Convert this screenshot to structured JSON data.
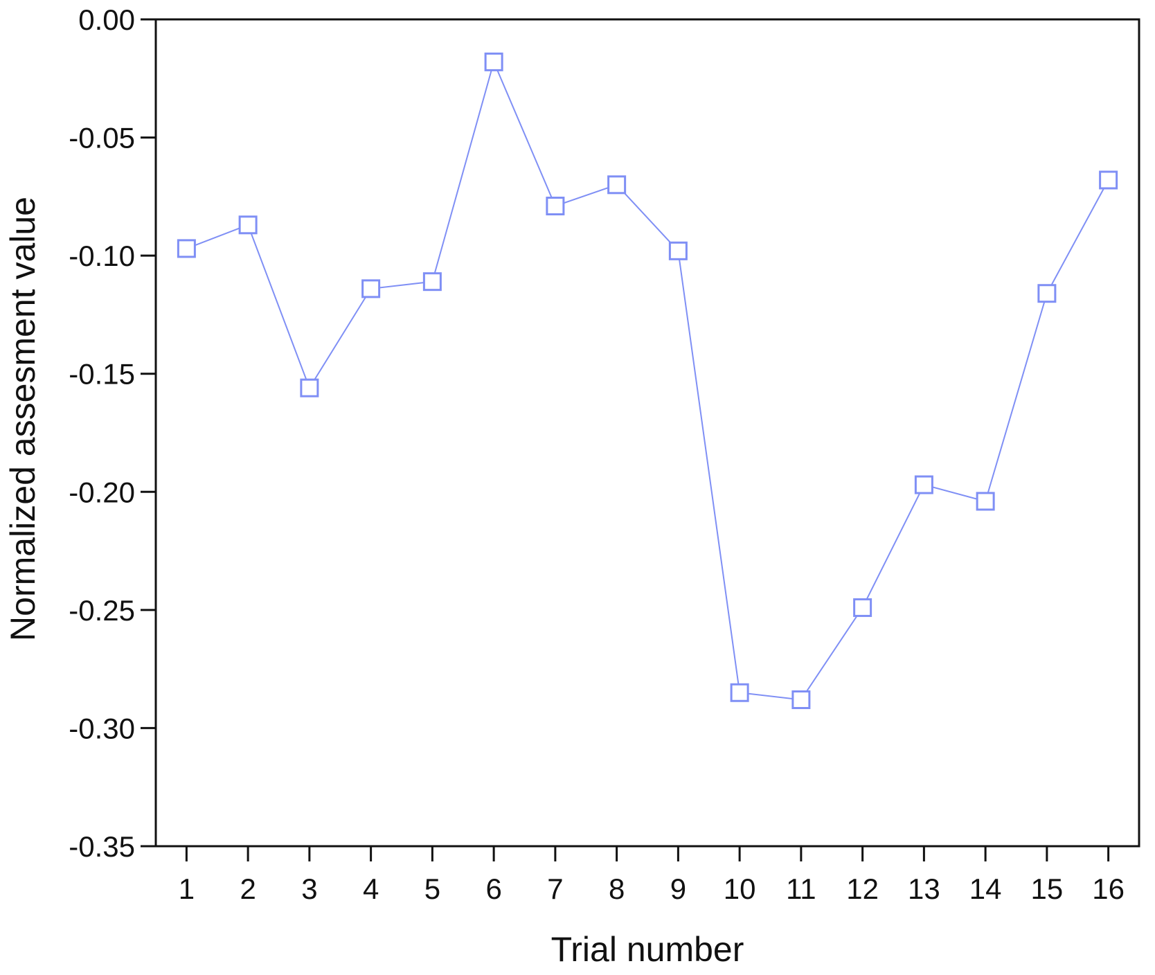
{
  "chart_data": {
    "type": "line",
    "title": "",
    "xlabel": "Trial number",
    "ylabel": "Normalized assesment value",
    "x": [
      1,
      2,
      3,
      4,
      5,
      6,
      7,
      8,
      9,
      10,
      11,
      12,
      13,
      14,
      15,
      16
    ],
    "x_tick_labels": [
      "1",
      "2",
      "3",
      "4",
      "5",
      "6",
      "7",
      "8",
      "9",
      "10",
      "11",
      "12",
      "13",
      "14",
      "15",
      "16"
    ],
    "y_ticks": [
      0.0,
      -0.05,
      -0.1,
      -0.15,
      -0.2,
      -0.25,
      -0.3,
      -0.35
    ],
    "y_tick_labels": [
      "0.00",
      "-0.05",
      "-0.10",
      "-0.15",
      "-0.20",
      "-0.25",
      "-0.30",
      "-0.35"
    ],
    "ylim": [
      -0.35,
      0.0
    ],
    "xlim": [
      0.5,
      16.5
    ],
    "grid": false,
    "series": [
      {
        "values": [
          -0.097,
          -0.087,
          -0.156,
          -0.114,
          -0.111,
          -0.018,
          -0.079,
          -0.07,
          -0.098,
          -0.285,
          -0.288,
          -0.249,
          -0.197,
          -0.204,
          -0.116,
          -0.068
        ],
        "color": "#7f8ff5",
        "marker": "open-square"
      }
    ]
  }
}
